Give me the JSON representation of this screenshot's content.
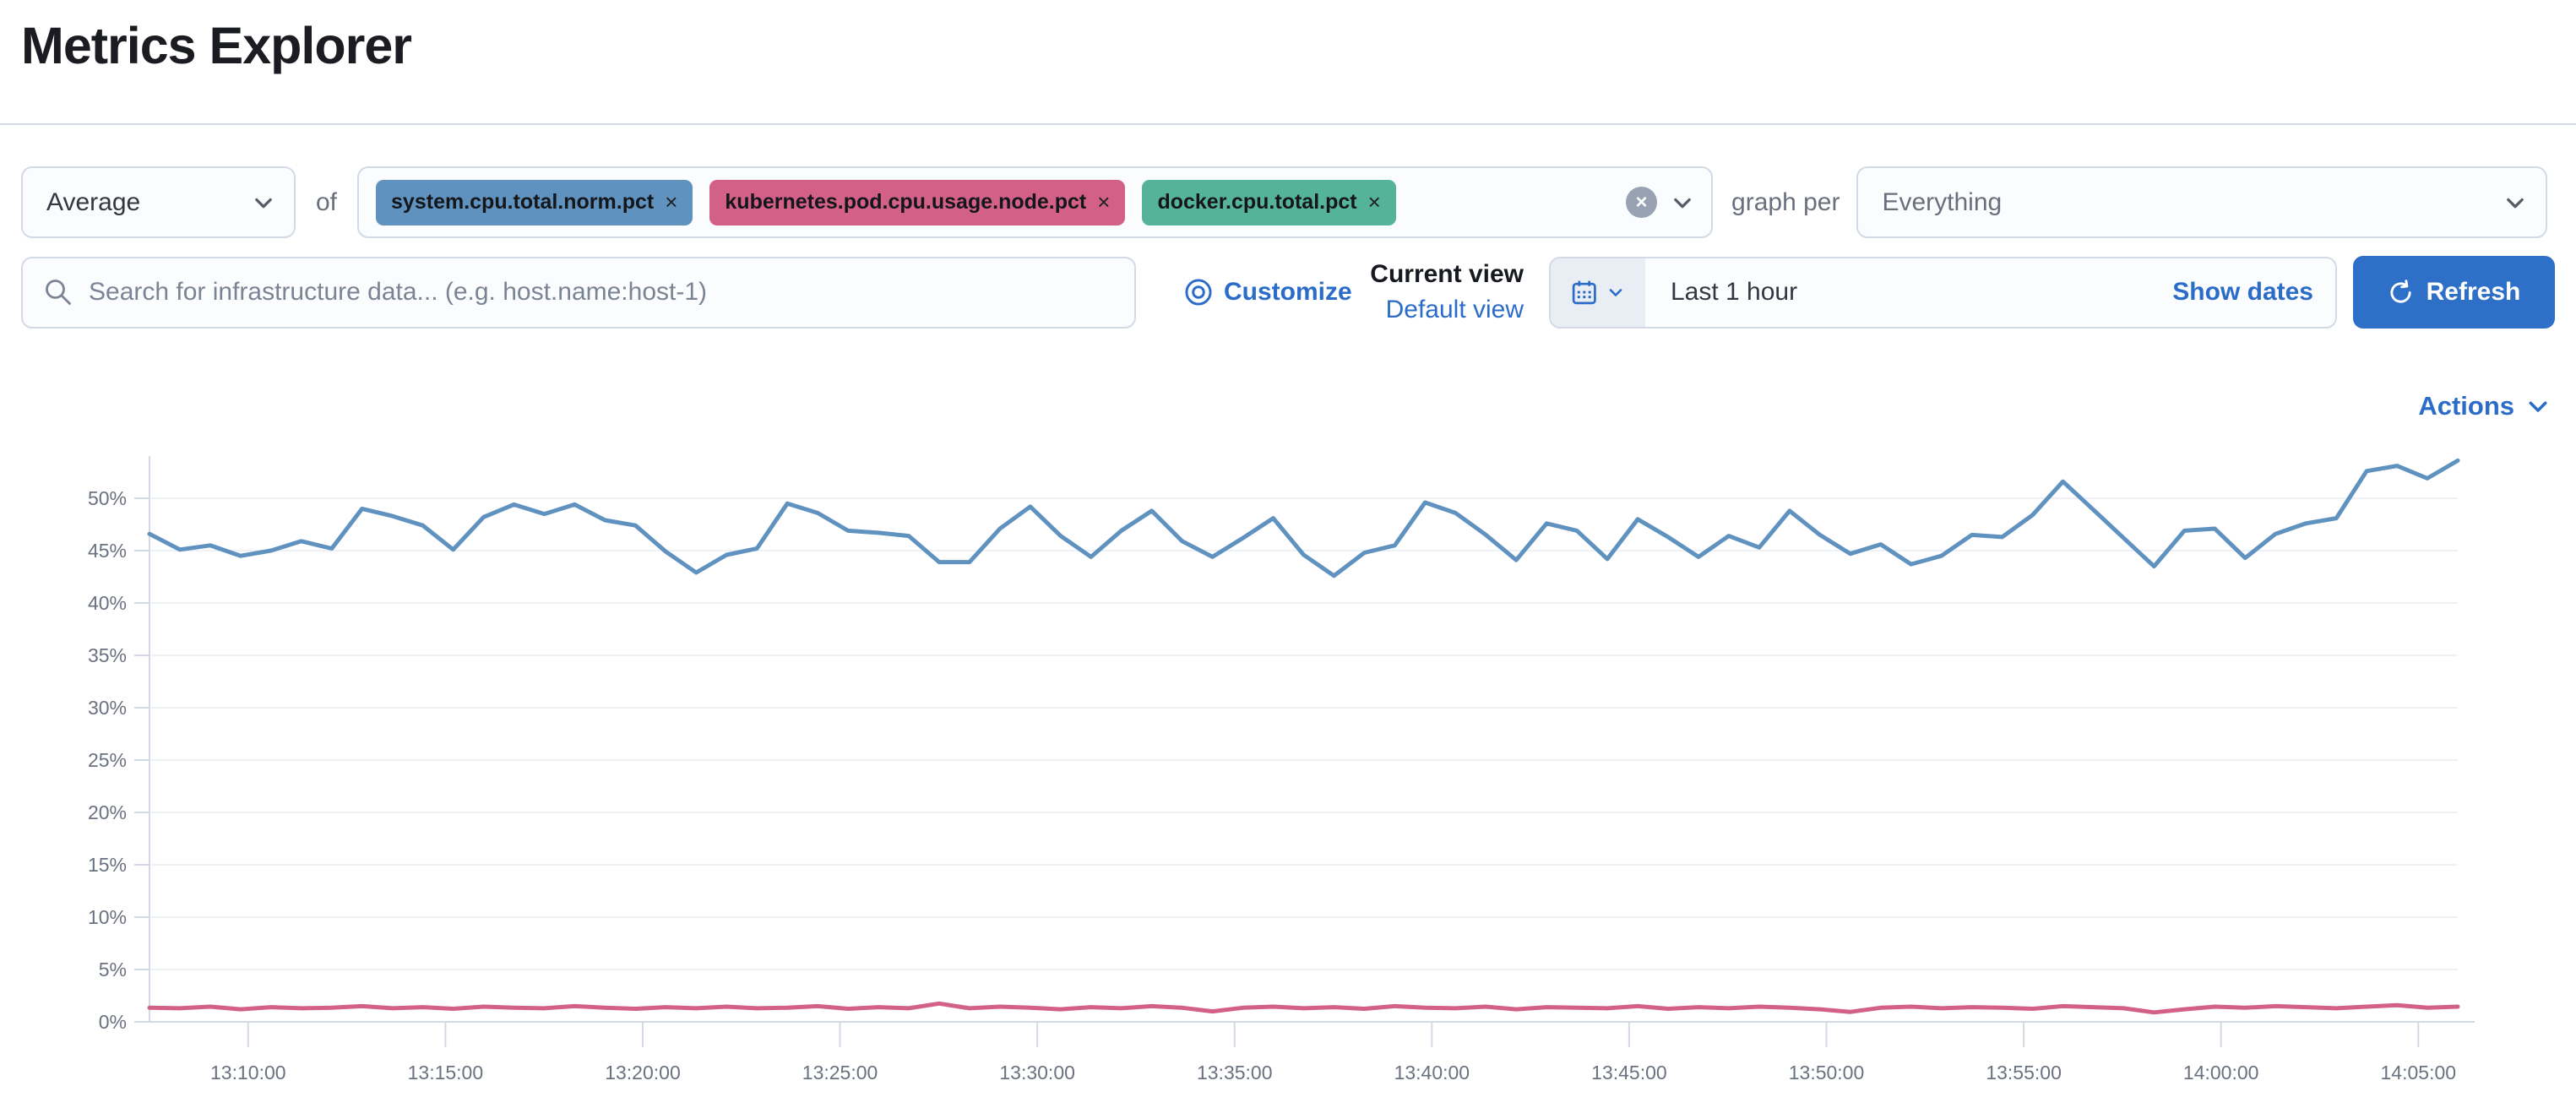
{
  "page": {
    "title": "Metrics Explorer"
  },
  "toolbar": {
    "aggregation": {
      "value": "Average"
    },
    "of_label": "of",
    "metrics": [
      {
        "label": "system.cpu.total.norm.pct",
        "color": "#6092C0"
      },
      {
        "label": "kubernetes.pod.cpu.usage.node.pct",
        "color": "#D36086"
      },
      {
        "label": "docker.cpu.total.pct",
        "color": "#54B399"
      }
    ],
    "graph_per_label": "graph per",
    "group_by": {
      "value": "Everything"
    }
  },
  "search": {
    "placeholder": "Search for infrastructure data... (e.g. host.name:host-1)"
  },
  "view_controls": {
    "customize_label": "Customize",
    "current_view_label": "Current view",
    "view_name": "Default view"
  },
  "time_picker": {
    "range": "Last 1 hour",
    "show_dates_label": "Show dates",
    "refresh_label": "Refresh"
  },
  "chart_header": {
    "actions_label": "Actions"
  },
  "colors": {
    "accent_blue": "#2b6cc8",
    "border": "#d3dae6",
    "axis_text": "#6a7280"
  },
  "chart_data": {
    "type": "line",
    "title": "",
    "xlabel": "",
    "ylabel": "",
    "ylim": [
      0,
      55
    ],
    "grid": true,
    "legend": "none",
    "y_ticks": [
      "0%",
      "5%",
      "10%",
      "15%",
      "20%",
      "25%",
      "30%",
      "35%",
      "40%",
      "45%",
      "50%"
    ],
    "x_ticks": [
      "13:10:00",
      "13:15:00",
      "13:20:00",
      "13:25:00",
      "13:30:00",
      "13:35:00",
      "13:40:00",
      "13:45:00",
      "13:50:00",
      "13:55:00",
      "14:00:00",
      "14:05:00"
    ],
    "x_range": [
      "13:07:30",
      "14:06:00"
    ],
    "series": [
      {
        "name": "system.cpu.total.norm.pct",
        "color": "#6092C0",
        "values": [
          46.6,
          45.1,
          45.5,
          44.5,
          45.0,
          45.9,
          45.2,
          49.0,
          48.3,
          47.4,
          45.1,
          48.2,
          49.4,
          48.5,
          49.4,
          47.9,
          47.4,
          44.9,
          42.9,
          44.6,
          45.2,
          49.5,
          48.6,
          46.9,
          46.7,
          46.4,
          43.9,
          43.9,
          47.1,
          49.2,
          46.4,
          44.4,
          46.9,
          48.8,
          45.9,
          44.4,
          46.2,
          48.1,
          44.6,
          42.6,
          44.8,
          45.5,
          49.6,
          48.6,
          46.5,
          44.1,
          47.6,
          46.9,
          44.2,
          48.0,
          46.3,
          44.4,
          46.4,
          45.3,
          48.8,
          46.5,
          44.7,
          45.6,
          43.7,
          44.5,
          46.5,
          46.3,
          48.4,
          51.6,
          48.9,
          46.2,
          43.5,
          46.9,
          47.1,
          44.3,
          46.6,
          47.6,
          48.1,
          52.6,
          53.1,
          51.9,
          53.6
        ]
      },
      {
        "name": "kubernetes.pod.cpu.usage.node.pct",
        "color": "#D36086",
        "values": [
          1.35,
          1.3,
          1.45,
          1.2,
          1.4,
          1.3,
          1.35,
          1.5,
          1.3,
          1.4,
          1.25,
          1.45,
          1.35,
          1.3,
          1.5,
          1.35,
          1.25,
          1.4,
          1.3,
          1.45,
          1.3,
          1.35,
          1.5,
          1.25,
          1.4,
          1.3,
          1.75,
          1.3,
          1.45,
          1.35,
          1.2,
          1.4,
          1.3,
          1.5,
          1.35,
          1.0,
          1.35,
          1.45,
          1.3,
          1.4,
          1.25,
          1.5,
          1.35,
          1.3,
          1.45,
          1.2,
          1.4,
          1.35,
          1.3,
          1.5,
          1.25,
          1.4,
          1.3,
          1.45,
          1.35,
          1.2,
          0.95,
          1.35,
          1.45,
          1.3,
          1.4,
          1.35,
          1.25,
          1.5,
          1.4,
          1.3,
          0.9,
          1.2,
          1.45,
          1.35,
          1.5,
          1.4,
          1.3,
          1.45,
          1.6,
          1.35,
          1.45
        ]
      }
    ]
  }
}
